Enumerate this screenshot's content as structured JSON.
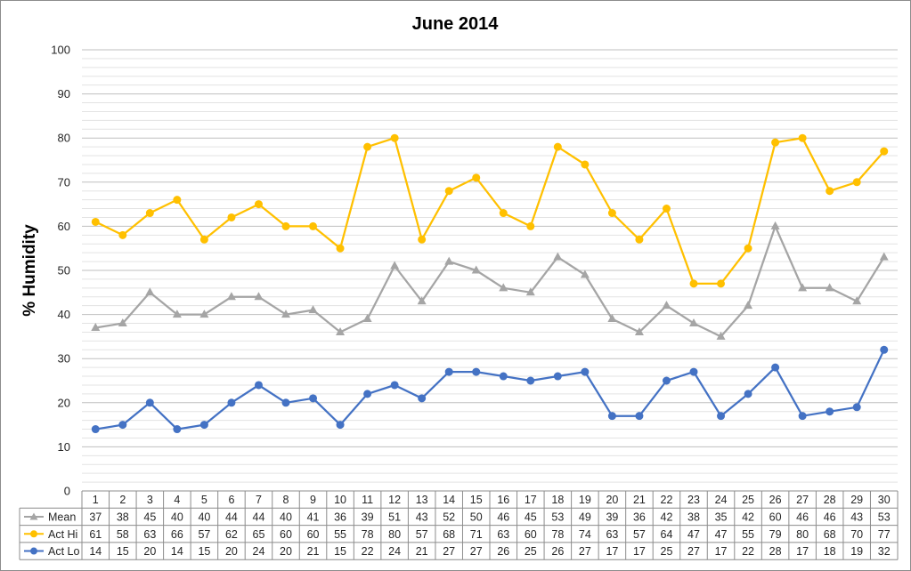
{
  "chart_data": {
    "type": "line",
    "title": "June 2014",
    "ylabel": "% Humidity",
    "xlabel": "",
    "ylim": [
      0,
      100
    ],
    "y_ticks": [
      0,
      10,
      20,
      30,
      40,
      50,
      60,
      70,
      80,
      90,
      100
    ],
    "grid": true,
    "legend": "data-table",
    "categories": [
      "1",
      "2",
      "3",
      "4",
      "5",
      "6",
      "7",
      "8",
      "9",
      "10",
      "11",
      "12",
      "13",
      "14",
      "15",
      "16",
      "17",
      "18",
      "19",
      "20",
      "21",
      "22",
      "23",
      "24",
      "25",
      "26",
      "27",
      "28",
      "29",
      "30"
    ],
    "series": [
      {
        "name": "Mean",
        "color": "#a5a5a5",
        "marker": "triangle",
        "values": [
          37,
          38,
          45,
          40,
          40,
          44,
          44,
          40,
          41,
          36,
          39,
          51,
          43,
          52,
          50,
          46,
          45,
          53,
          49,
          39,
          36,
          42,
          38,
          35,
          42,
          60,
          46,
          46,
          43,
          53
        ]
      },
      {
        "name": "Act Hi",
        "color": "#ffc000",
        "marker": "circle",
        "values": [
          61,
          58,
          63,
          66,
          57,
          62,
          65,
          60,
          60,
          55,
          78,
          80,
          57,
          68,
          71,
          63,
          60,
          78,
          74,
          63,
          57,
          64,
          47,
          47,
          55,
          79,
          80,
          68,
          70,
          77
        ]
      },
      {
        "name": "Act Lo",
        "color": "#4472c4",
        "marker": "circle",
        "values": [
          14,
          15,
          20,
          14,
          15,
          20,
          24,
          20,
          21,
          15,
          22,
          24,
          21,
          27,
          27,
          26,
          25,
          26,
          27,
          17,
          17,
          25,
          27,
          17,
          22,
          28,
          17,
          18,
          19,
          32
        ]
      }
    ]
  }
}
